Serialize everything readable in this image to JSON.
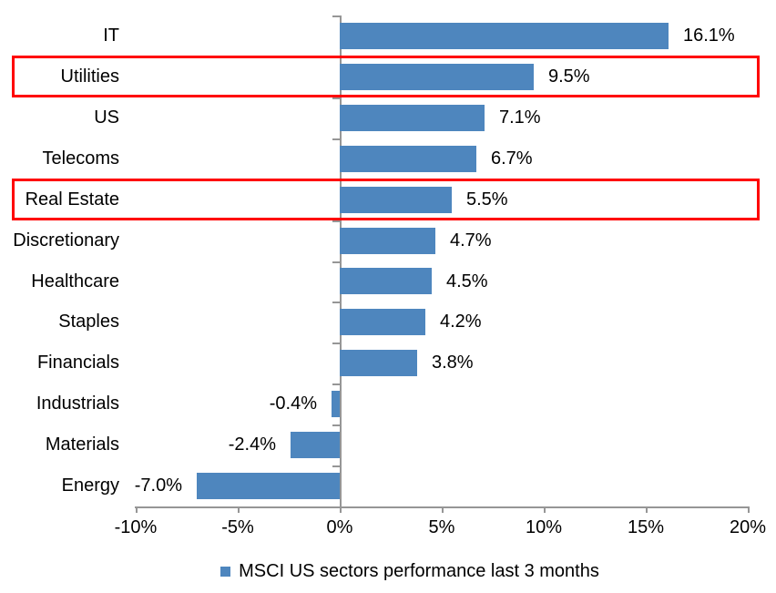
{
  "chart_data": {
    "type": "bar",
    "orientation": "horizontal",
    "categories": [
      "IT",
      "Utilities",
      "US",
      "Telecoms",
      "Real Estate",
      "Discretionary",
      "Healthcare",
      "Staples",
      "Financials",
      "Industrials",
      "Materials",
      "Energy"
    ],
    "values": [
      16.1,
      9.5,
      7.1,
      6.7,
      5.5,
      4.7,
      4.5,
      4.2,
      3.8,
      -0.4,
      -2.4,
      -7.0
    ],
    "value_labels": [
      "16.1%",
      "9.5%",
      "7.1%",
      "6.7%",
      "5.5%",
      "4.7%",
      "4.5%",
      "4.2%",
      "3.8%",
      "-0.4%",
      "-2.4%",
      "-7.0%"
    ],
    "highlighted_categories": [
      "Utilities",
      "Real Estate"
    ],
    "x_axis": {
      "min": -10,
      "max": 20,
      "tick_interval": 5,
      "tick_values": [
        -10,
        -5,
        0,
        5,
        10,
        15,
        20
      ],
      "tick_labels": [
        "-10%",
        "-5%",
        "0%",
        "5%",
        "10%",
        "15%",
        "20%"
      ]
    },
    "grid": false,
    "legend": {
      "position": "bottom",
      "label": "MSCI US sectors performance last 3 months"
    },
    "colors": {
      "bar": "#4E86BE",
      "highlight_box": "#FF0000",
      "axis": "#969696",
      "text": "#000000",
      "background": "#FFFFFF"
    }
  }
}
